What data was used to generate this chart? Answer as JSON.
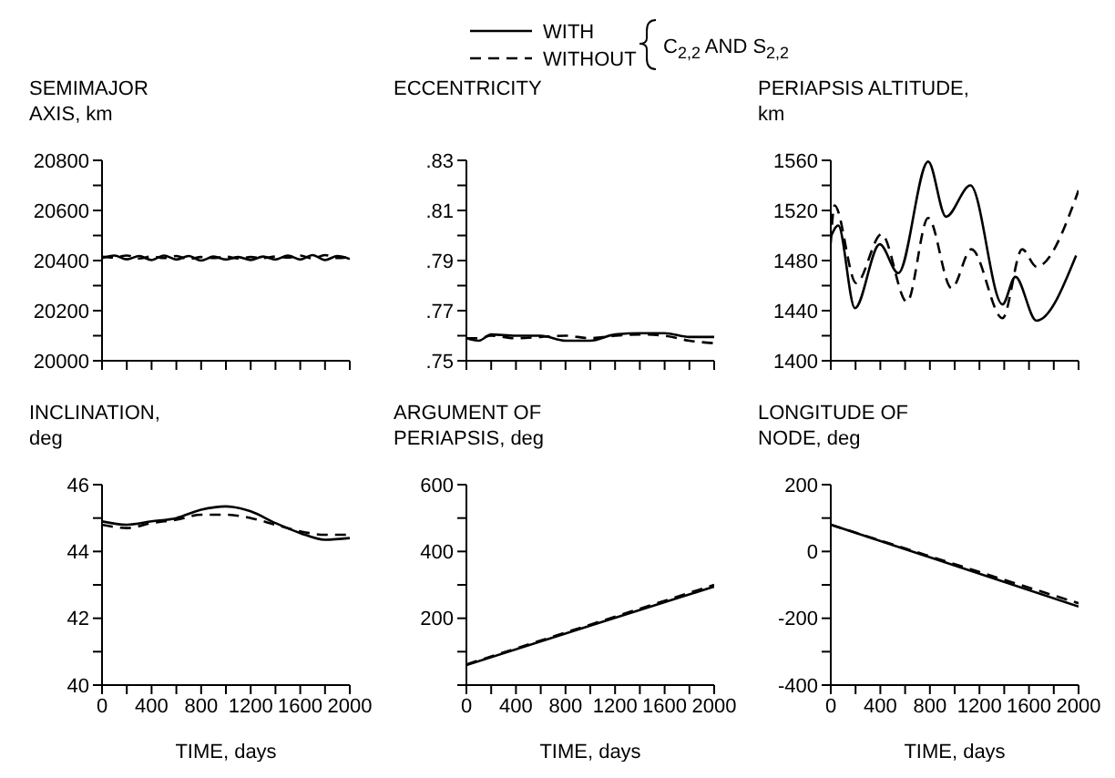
{
  "chart_data": [
    {
      "type": "line",
      "title": "SEMIMAJOR\nAXIS, km",
      "legend": "top",
      "legend_title": "C$_{2,2}$ AND S$_{2,2}$",
      "marker": "none",
      "grid": false,
      "tick_labels": "y",
      "xlim": [
        0,
        2000
      ],
      "xticks": [
        {
          "value": 0,
          "label": null
        },
        {
          "value": 200,
          "label": null
        },
        {
          "value": 400,
          "label": null
        },
        {
          "value": 600,
          "label": null
        },
        {
          "value": 800,
          "label": null
        },
        {
          "value": 1000,
          "label": null
        },
        {
          "value": 1200,
          "label": null
        },
        {
          "value": 1400,
          "label": null
        },
        {
          "value": 1600,
          "label": null
        },
        {
          "value": 1800,
          "label": null
        },
        {
          "value": 2000,
          "label": null
        }
      ],
      "ylim": [
        20000,
        20800
      ],
      "yticks": [
        20000,
        {
          "value": 20100,
          "label": null
        },
        20200,
        {
          "value": 20300,
          "label": null
        },
        20400,
        {
          "value": 20500,
          "label": null
        },
        20600,
        {
          "value": 20700,
          "label": null
        },
        20800
      ],
      "x": [
        0,
        100,
        200,
        300,
        400,
        500,
        600,
        700,
        800,
        900,
        1000,
        1100,
        1200,
        1300,
        1400,
        1500,
        1600,
        1700,
        1800,
        1900,
        2000
      ],
      "series": [
        {
          "name": "WITH",
          "color": "#000000",
          "line_style": "solid",
          "values": [
            20410,
            20420,
            20405,
            20418,
            20402,
            20420,
            20404,
            20418,
            20400,
            20416,
            20404,
            20414,
            20402,
            20416,
            20404,
            20420,
            20404,
            20422,
            20402,
            20418,
            20406
          ]
        },
        {
          "name": "WITHOUT",
          "color": "#000000",
          "line_style": "dashed",
          "values": [
            20415,
            20412,
            20420,
            20408,
            20416,
            20410,
            20418,
            20406,
            20414,
            20410,
            20416,
            20408,
            20414,
            20410,
            20416,
            20412,
            20420,
            20408,
            20422,
            20410,
            20414
          ]
        }
      ]
    },
    {
      "type": "line",
      "title": "ECCENTRICITY",
      "marker": "none",
      "grid": false,
      "tick_labels": "y",
      "xlim": [
        0,
        2000
      ],
      "xticks": [
        {
          "value": 0,
          "label": null
        },
        {
          "value": 200,
          "label": null
        },
        {
          "value": 400,
          "label": null
        },
        {
          "value": 600,
          "label": null
        },
        {
          "value": 800,
          "label": null
        },
        {
          "value": 1000,
          "label": null
        },
        {
          "value": 1200,
          "label": null
        },
        {
          "value": 1400,
          "label": null
        },
        {
          "value": 1600,
          "label": null
        },
        {
          "value": 1800,
          "label": null
        },
        {
          "value": 2000,
          "label": null
        }
      ],
      "ylim": [
        0.75,
        0.83
      ],
      "yticks": [
        {
          "value": 0.75,
          "label": ".75"
        },
        {
          "value": 0.76,
          "label": null
        },
        {
          "value": 0.77,
          "label": ".77"
        },
        {
          "value": 0.78,
          "label": null
        },
        {
          "value": 0.79,
          "label": ".79"
        },
        {
          "value": 0.8,
          "label": null
        },
        {
          "value": 0.81,
          "label": ".81"
        },
        {
          "value": 0.82,
          "label": null
        },
        {
          "value": 0.83,
          "label": ".83"
        }
      ],
      "x": [
        0,
        100,
        200,
        400,
        600,
        800,
        1000,
        1200,
        1400,
        1600,
        1800,
        2000
      ],
      "series": [
        {
          "color": "#000000",
          "line_style": "solid",
          "values": [
            0.759,
            0.758,
            0.7605,
            0.76,
            0.76,
            0.758,
            0.758,
            0.7605,
            0.761,
            0.761,
            0.7595,
            0.7595
          ]
        },
        {
          "color": "#000000",
          "line_style": "dashed",
          "values": [
            0.759,
            0.759,
            0.76,
            0.759,
            0.7595,
            0.76,
            0.759,
            0.76,
            0.7605,
            0.76,
            0.758,
            0.757
          ]
        }
      ]
    },
    {
      "type": "line",
      "title": "PERIAPSIS ALTITUDE,\nkm",
      "marker": "none",
      "grid": false,
      "tick_labels": "y",
      "xlim": [
        0,
        2000
      ],
      "xticks": [
        {
          "value": 0,
          "label": null
        },
        {
          "value": 200,
          "label": null
        },
        {
          "value": 400,
          "label": null
        },
        {
          "value": 600,
          "label": null
        },
        {
          "value": 800,
          "label": null
        },
        {
          "value": 1000,
          "label": null
        },
        {
          "value": 1200,
          "label": null
        },
        {
          "value": 1400,
          "label": null
        },
        {
          "value": 1600,
          "label": null
        },
        {
          "value": 1800,
          "label": null
        },
        {
          "value": 2000,
          "label": null
        }
      ],
      "ylim": [
        1400,
        1560
      ],
      "yticks": [
        1400,
        {
          "value": 1420,
          "label": null
        },
        1440,
        {
          "value": 1460,
          "label": null
        },
        1480,
        {
          "value": 1500,
          "label": null
        },
        1520,
        {
          "value": 1540,
          "label": null
        },
        1560
      ],
      "series": [
        {
          "color": "#000000",
          "line_style": "solid",
          "x": [
            0,
            60,
            195,
            395,
            545,
            786,
            930,
            1127,
            1386,
            1490,
            1660,
            1980
          ],
          "values": [
            1499,
            1508,
            1442,
            1493,
            1470,
            1559,
            1515,
            1540,
            1445,
            1467,
            1432,
            1484
          ]
        },
        {
          "color": "#000000",
          "line_style": "dashed",
          "x": [
            0,
            30,
            205,
            410,
            615,
            786,
            975,
            1135,
            1386,
            1545,
            1660,
            2000
          ],
          "values": [
            1494,
            1524,
            1462,
            1501,
            1447,
            1514,
            1458,
            1489,
            1434,
            1489,
            1475,
            1536
          ]
        }
      ]
    },
    {
      "type": "line",
      "title": "INCLINATION,\ndeg",
      "xlabel": "TIME, days",
      "marker": "none",
      "grid": false,
      "xlim": [
        0,
        2000
      ],
      "xticks": [
        0,
        {
          "value": 200,
          "label": null
        },
        400,
        {
          "value": 600,
          "label": null
        },
        800,
        {
          "value": 1000,
          "label": null
        },
        1200,
        {
          "value": 1400,
          "label": null
        },
        1600,
        {
          "value": 1800,
          "label": null
        },
        2000
      ],
      "ylim": [
        40,
        46
      ],
      "yticks": [
        40,
        {
          "value": 41,
          "label": null
        },
        42,
        {
          "value": 43,
          "label": null
        },
        44,
        {
          "value": 45,
          "label": null
        },
        46
      ],
      "x": [
        0,
        200,
        400,
        600,
        800,
        1000,
        1200,
        1400,
        1600,
        1800,
        2000
      ],
      "series": [
        {
          "color": "#000000",
          "line_style": "solid",
          "values": [
            44.9,
            44.8,
            44.9,
            45.0,
            45.25,
            45.35,
            45.2,
            44.85,
            44.55,
            44.35,
            44.4
          ]
        },
        {
          "color": "#000000",
          "line_style": "dashed",
          "values": [
            44.8,
            44.7,
            44.85,
            44.95,
            45.1,
            45.1,
            45.0,
            44.8,
            44.6,
            44.5,
            44.5
          ]
        }
      ]
    },
    {
      "type": "line",
      "title": "ARGUMENT OF\nPERIAPSIS, deg",
      "xlabel": "TIME, days",
      "marker": "none",
      "grid": false,
      "xlim": [
        0,
        2000
      ],
      "xticks": [
        0,
        {
          "value": 200,
          "label": null
        },
        400,
        {
          "value": 600,
          "label": null
        },
        800,
        {
          "value": 1000,
          "label": null
        },
        1200,
        {
          "value": 1400,
          "label": null
        },
        1600,
        {
          "value": 1800,
          "label": null
        },
        2000
      ],
      "ylim": [
        0,
        600
      ],
      "yticks": [
        {
          "value": 0,
          "label": null
        },
        {
          "value": 100,
          "label": null
        },
        200,
        {
          "value": 300,
          "label": null
        },
        400,
        {
          "value": 500,
          "label": null
        },
        600
      ],
      "x": [
        0,
        1000,
        2000
      ],
      "series": [
        {
          "color": "#000000",
          "line_style": "solid",
          "values": [
            60,
            178,
            295
          ]
        },
        {
          "color": "#000000",
          "line_style": "dashed",
          "values": [
            62,
            181,
            300
          ]
        }
      ]
    },
    {
      "type": "line",
      "title": "LONGITUDE OF\nNODE, deg",
      "xlabel": "TIME, days",
      "marker": "none",
      "grid": false,
      "xlim": [
        0,
        2000
      ],
      "xticks": [
        0,
        {
          "value": 200,
          "label": null
        },
        400,
        {
          "value": 600,
          "label": null
        },
        800,
        {
          "value": 1000,
          "label": null
        },
        1200,
        {
          "value": 1400,
          "label": null
        },
        1600,
        {
          "value": 1800,
          "label": null
        },
        2000
      ],
      "ylim": [
        -400,
        200
      ],
      "yticks": [
        -400,
        {
          "value": -300,
          "label": null
        },
        -200,
        {
          "value": -100,
          "label": null
        },
        0,
        {
          "value": 100,
          "label": null
        },
        200
      ],
      "x": [
        0,
        1000,
        2000
      ],
      "series": [
        {
          "color": "#000000",
          "line_style": "solid",
          "values": [
            80,
            -42,
            -165
          ]
        },
        {
          "color": "#000000",
          "line_style": "dashed",
          "values": [
            80,
            -38,
            -155
          ]
        }
      ]
    }
  ]
}
